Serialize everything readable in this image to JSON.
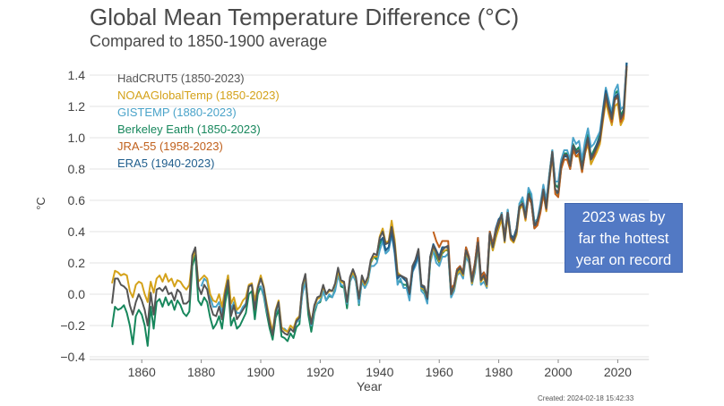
{
  "chart_data": {
    "type": "line",
    "title": "Global Mean Temperature Difference (°C)",
    "subtitle": "Compared to 1850-1900 average",
    "xlabel": "Year",
    "ylabel": "°C",
    "xlim": [
      1846,
      2032
    ],
    "ylim": [
      -0.4,
      1.4
    ],
    "xticks": [
      1860,
      1880,
      1900,
      1920,
      1940,
      1960,
      1980,
      2000,
      2020
    ],
    "yticks": [
      "−0.4",
      "−0.2",
      "0.0",
      "0.2",
      "0.4",
      "0.6",
      "0.8",
      "1.0",
      "1.2",
      "1.4"
    ],
    "ytick_values": [
      -0.4,
      -0.2,
      0,
      0.2,
      0.4,
      0.6,
      0.8,
      1.0,
      1.2,
      1.4
    ],
    "grid": "horizontal",
    "legend_position": "top-left",
    "annotation": "2023 was by far the hottest year on record",
    "annotation_color": "#5279c4",
    "created": "Created: 2024-02-18 15:42:33",
    "series": [
      {
        "name": "Berkeley Earth (1850-2023)",
        "color": "#17875c",
        "start": 1850,
        "values": [
          -0.21,
          -0.08,
          -0.1,
          -0.09,
          -0.07,
          -0.12,
          -0.2,
          -0.32,
          -0.14,
          -0.1,
          -0.13,
          -0.2,
          -0.33,
          -0.08,
          -0.22,
          -0.05,
          -0.03,
          -0.08,
          -0.02,
          -0.07,
          -0.04,
          -0.1,
          -0.04,
          -0.07,
          -0.12,
          -0.14,
          -0.11,
          0.18,
          0.25,
          -0.04,
          -0.07,
          -0.02,
          -0.05,
          -0.15,
          -0.22,
          -0.19,
          -0.14,
          -0.22,
          -0.06,
          0.05,
          -0.2,
          -0.15,
          -0.22,
          -0.2,
          -0.16,
          -0.12,
          0.0,
          0.02,
          -0.16,
          0.0,
          0.05,
          -0.01,
          -0.12,
          -0.22,
          -0.29,
          -0.15,
          -0.1,
          -0.27,
          -0.28,
          -0.3,
          -0.25,
          -0.28,
          -0.21,
          -0.19,
          0.02,
          0.1,
          -0.13,
          -0.24,
          -0.12,
          -0.06,
          -0.05,
          0.02,
          -0.04,
          -0.01,
          -0.02,
          0.03,
          0.14,
          0.05,
          0.04,
          -0.09,
          0.08,
          0.13,
          0.08,
          -0.07,
          0.09,
          0.04,
          0.08,
          0.2,
          0.24,
          0.22,
          0.32,
          0.36,
          0.28,
          0.3,
          0.4,
          0.28,
          0.08,
          0.08,
          0.06,
          0.06,
          -0.02,
          0.14,
          0.2,
          0.26,
          0.04,
          0.02,
          -0.05,
          0.22,
          0.28,
          0.24,
          0.2,
          0.26,
          0.28,
          0.28,
          -0.02,
          0.04,
          0.14,
          0.16,
          0.12,
          0.26,
          0.22,
          0.08,
          0.18,
          0.32,
          0.1,
          0.12,
          0.06,
          0.4,
          0.3,
          0.4,
          0.46,
          0.52,
          0.36,
          0.54,
          0.38,
          0.36,
          0.42,
          0.58,
          0.6,
          0.5,
          0.66,
          0.62,
          0.46,
          0.48,
          0.56,
          0.68,
          0.56,
          0.76,
          0.92,
          0.7,
          0.68,
          0.84,
          0.9,
          0.9,
          0.84,
          0.96,
          0.92,
          0.94,
          0.82,
          0.94,
          1.02,
          0.88,
          0.92,
          0.96,
          1.02,
          1.16,
          1.3,
          1.22,
          1.14,
          1.28,
          1.3,
          1.14,
          1.18,
          1.48
        ]
      },
      {
        "name": "GISTEMP (1880-2023)",
        "color": "#4aa3c9",
        "start": 1880,
        "values": [
          0.05,
          0.1,
          0.08,
          -0.02,
          -0.08,
          -0.08,
          -0.05,
          -0.12,
          0.02,
          0.12,
          -0.1,
          -0.05,
          -0.12,
          -0.12,
          -0.08,
          -0.06,
          0.05,
          0.06,
          -0.08,
          0.04,
          0.05,
          0.0,
          -0.1,
          -0.18,
          -0.25,
          -0.12,
          -0.06,
          -0.22,
          -0.22,
          -0.24,
          -0.22,
          -0.24,
          -0.18,
          -0.16,
          0.0,
          0.08,
          -0.08,
          -0.2,
          -0.1,
          -0.06,
          -0.04,
          0.02,
          -0.04,
          0.0,
          -0.02,
          0.02,
          0.12,
          0.06,
          0.05,
          -0.06,
          0.08,
          0.12,
          0.08,
          -0.06,
          0.08,
          0.04,
          0.08,
          0.18,
          0.18,
          0.2,
          0.28,
          0.34,
          0.26,
          0.28,
          0.38,
          0.26,
          0.06,
          0.1,
          0.04,
          0.04,
          -0.04,
          0.14,
          0.18,
          0.24,
          0.02,
          0.0,
          -0.06,
          0.2,
          0.28,
          0.2,
          0.18,
          0.24,
          0.24,
          0.26,
          -0.02,
          0.02,
          0.12,
          0.14,
          0.1,
          0.24,
          0.2,
          0.06,
          0.14,
          0.3,
          0.06,
          0.08,
          0.04,
          0.36,
          0.28,
          0.36,
          0.44,
          0.52,
          0.36,
          0.54,
          0.38,
          0.36,
          0.42,
          0.58,
          0.62,
          0.52,
          0.68,
          0.64,
          0.46,
          0.48,
          0.58,
          0.7,
          0.6,
          0.76,
          0.92,
          0.72,
          0.72,
          0.86,
          0.92,
          0.92,
          0.86,
          1.0,
          0.96,
          0.98,
          0.86,
          0.98,
          1.06,
          0.94,
          0.96,
          1.0,
          1.04,
          1.18,
          1.32,
          1.24,
          1.16,
          1.3,
          1.34,
          1.18,
          1.2,
          1.48
        ]
      },
      {
        "name": "NOAAGlobalTemp (1850-2023)",
        "color": "#d4a21a",
        "start": 1850,
        "values": [
          0.07,
          0.15,
          0.14,
          0.12,
          0.13,
          0.12,
          0.02,
          -0.02,
          0.06,
          0.08,
          0.07,
          0.0,
          -0.05,
          0.08,
          0.01,
          0.1,
          0.12,
          0.08,
          0.13,
          0.08,
          0.1,
          0.05,
          0.09,
          0.08,
          0.05,
          0.03,
          0.06,
          0.22,
          0.29,
          0.08,
          0.1,
          0.12,
          0.1,
          0.0,
          -0.04,
          -0.05,
          0.0,
          -0.08,
          0.03,
          0.12,
          -0.06,
          -0.02,
          -0.1,
          -0.08,
          -0.04,
          -0.02,
          0.06,
          0.07,
          -0.04,
          0.05,
          0.12,
          0.05,
          -0.06,
          -0.16,
          -0.24,
          -0.1,
          -0.04,
          -0.21,
          -0.23,
          -0.24,
          -0.2,
          -0.22,
          -0.16,
          -0.14,
          0.05,
          0.12,
          -0.08,
          -0.18,
          -0.08,
          -0.03,
          -0.02,
          0.05,
          0.0,
          0.02,
          0.02,
          0.06,
          0.15,
          0.08,
          0.07,
          -0.04,
          0.1,
          0.14,
          0.1,
          -0.02,
          0.1,
          0.06,
          0.1,
          0.21,
          0.24,
          0.24,
          0.37,
          0.42,
          0.33,
          0.34,
          0.47,
          0.35,
          0.14,
          0.12,
          0.1,
          0.08,
          0.0,
          0.16,
          0.21,
          0.28,
          0.04,
          0.03,
          -0.03,
          0.22,
          0.3,
          0.26,
          0.21,
          0.27,
          0.28,
          0.29,
          0.0,
          0.04,
          0.13,
          0.15,
          0.12,
          0.27,
          0.22,
          0.07,
          0.17,
          0.32,
          0.08,
          0.11,
          0.05,
          0.37,
          0.28,
          0.36,
          0.42,
          0.48,
          0.33,
          0.5,
          0.35,
          0.33,
          0.38,
          0.54,
          0.57,
          0.47,
          0.62,
          0.58,
          0.43,
          0.46,
          0.53,
          0.64,
          0.53,
          0.72,
          0.88,
          0.65,
          0.63,
          0.8,
          0.86,
          0.86,
          0.8,
          0.92,
          0.88,
          0.88,
          0.78,
          0.9,
          0.96,
          0.83,
          0.87,
          0.91,
          0.96,
          1.1,
          1.23,
          1.15,
          1.08,
          1.2,
          1.22,
          1.08,
          1.12,
          1.44
        ]
      },
      {
        "name": "ERA5 (1940-2023)",
        "color": "#1f5d8c",
        "start": 1940,
        "values": [
          0.34,
          0.36,
          0.28,
          0.3,
          0.4,
          0.28,
          0.1,
          0.12,
          0.1,
          0.08,
          0.0,
          0.15,
          0.2,
          0.26,
          0.05,
          0.04,
          -0.03,
          0.24,
          0.32,
          0.28,
          0.24,
          0.3,
          0.3,
          0.3,
          0.02,
          0.06,
          0.16,
          0.18,
          0.14,
          0.3,
          0.24,
          0.1,
          0.2,
          0.36,
          0.12,
          0.14,
          0.1,
          0.4,
          0.32,
          0.42,
          0.48,
          0.5,
          0.38,
          0.52,
          0.38,
          0.36,
          0.42,
          0.56,
          0.58,
          0.5,
          0.62,
          0.58,
          0.42,
          0.46,
          0.54,
          0.66,
          0.56,
          0.74,
          0.9,
          0.66,
          0.64,
          0.82,
          0.88,
          0.88,
          0.8,
          0.94,
          0.9,
          0.92,
          0.8,
          0.92,
          1.0,
          0.88,
          0.9,
          0.96,
          1.0,
          1.16,
          1.3,
          1.2,
          1.14,
          1.26,
          1.28,
          1.12,
          1.16,
          1.48
        ]
      },
      {
        "name": "JRA-55 (1958-2023)",
        "color": "#c0601c",
        "start": 1958,
        "values": [
          0.4,
          0.34,
          0.3,
          0.34,
          0.34,
          0.34,
          0.04,
          0.06,
          0.16,
          0.18,
          0.14,
          0.3,
          0.24,
          0.1,
          0.2,
          0.36,
          0.1,
          0.14,
          0.08,
          0.4,
          0.32,
          0.4,
          0.46,
          0.5,
          0.36,
          0.52,
          0.36,
          0.34,
          0.4,
          0.56,
          0.58,
          0.48,
          0.62,
          0.58,
          0.42,
          0.44,
          0.52,
          0.64,
          0.54,
          0.72,
          0.9,
          0.64,
          0.62,
          0.8,
          0.86,
          0.86,
          0.8,
          0.92,
          0.88,
          0.9,
          0.78,
          0.9,
          0.98,
          0.86,
          0.88,
          0.94,
          0.98,
          1.12,
          1.26,
          1.18,
          1.1,
          1.24,
          1.26,
          1.1,
          1.14,
          1.46
        ]
      },
      {
        "name": "HadCRUT5 (1850-2023)",
        "color": "#555555",
        "start": 1850,
        "values": [
          -0.06,
          0.1,
          0.1,
          0.06,
          0.05,
          0.03,
          -0.07,
          -0.13,
          -0.05,
          0.0,
          -0.04,
          -0.1,
          -0.2,
          0.01,
          -0.13,
          0.03,
          0.04,
          0.02,
          0.05,
          0.0,
          0.01,
          -0.04,
          0.03,
          0.01,
          -0.06,
          -0.06,
          -0.04,
          0.25,
          0.3,
          0.05,
          0.0,
          0.06,
          0.03,
          -0.07,
          -0.13,
          -0.14,
          -0.08,
          -0.16,
          0.0,
          0.09,
          -0.14,
          -0.07,
          -0.16,
          -0.13,
          -0.1,
          -0.07,
          0.05,
          0.06,
          -0.1,
          0.04,
          0.1,
          0.04,
          -0.08,
          -0.19,
          -0.26,
          -0.11,
          -0.05,
          -0.23,
          -0.25,
          -0.26,
          -0.22,
          -0.24,
          -0.17,
          -0.15,
          0.06,
          0.13,
          -0.09,
          -0.19,
          -0.07,
          -0.02,
          -0.01,
          0.06,
          0.0,
          0.03,
          0.02,
          0.07,
          0.17,
          0.09,
          0.08,
          -0.05,
          0.11,
          0.16,
          0.11,
          -0.03,
          0.12,
          0.07,
          0.11,
          0.22,
          0.26,
          0.25,
          0.36,
          0.4,
          0.32,
          0.33,
          0.43,
          0.32,
          0.12,
          0.12,
          0.11,
          0.1,
          0.01,
          0.18,
          0.22,
          0.29,
          0.06,
          0.05,
          -0.02,
          0.24,
          0.31,
          0.27,
          0.22,
          0.28,
          0.3,
          0.31,
          0.0,
          0.05,
          0.15,
          0.17,
          0.13,
          0.28,
          0.23,
          0.08,
          0.18,
          0.33,
          0.09,
          0.12,
          0.06,
          0.39,
          0.3,
          0.39,
          0.45,
          0.51,
          0.34,
          0.52,
          0.37,
          0.34,
          0.4,
          0.56,
          0.58,
          0.49,
          0.64,
          0.6,
          0.44,
          0.47,
          0.55,
          0.67,
          0.55,
          0.74,
          0.91,
          0.67,
          0.65,
          0.83,
          0.89,
          0.89,
          0.82,
          0.95,
          0.91,
          0.92,
          0.8,
          0.92,
          1.0,
          0.86,
          0.9,
          0.94,
          0.99,
          1.14,
          1.28,
          1.19,
          1.12,
          1.25,
          1.27,
          1.12,
          1.16,
          1.46
        ]
      }
    ],
    "legend_order": [
      "HadCRUT5 (1850-2023)",
      "NOAAGlobalTemp (1850-2023)",
      "GISTEMP (1880-2023)",
      "Berkeley Earth (1850-2023)",
      "JRA-55 (1958-2023)",
      "ERA5 (1940-2023)"
    ]
  },
  "legend": [
    {
      "label": "HadCRUT5 (1850-2023)",
      "color": "#555555"
    },
    {
      "label": "NOAAGlobalTemp (1850-2023)",
      "color": "#d4a21a"
    },
    {
      "label": "GISTEMP (1880-2023)",
      "color": "#4aa3c9"
    },
    {
      "label": "Berkeley Earth (1850-2023)",
      "color": "#17875c"
    },
    {
      "label": "JRA-55 (1958-2023)",
      "color": "#c0601c"
    },
    {
      "label": "ERA5 (1940-2023)",
      "color": "#1f5d8c"
    }
  ],
  "annotation_lines": [
    "2023 was by",
    "far the hottest",
    "year on record"
  ]
}
